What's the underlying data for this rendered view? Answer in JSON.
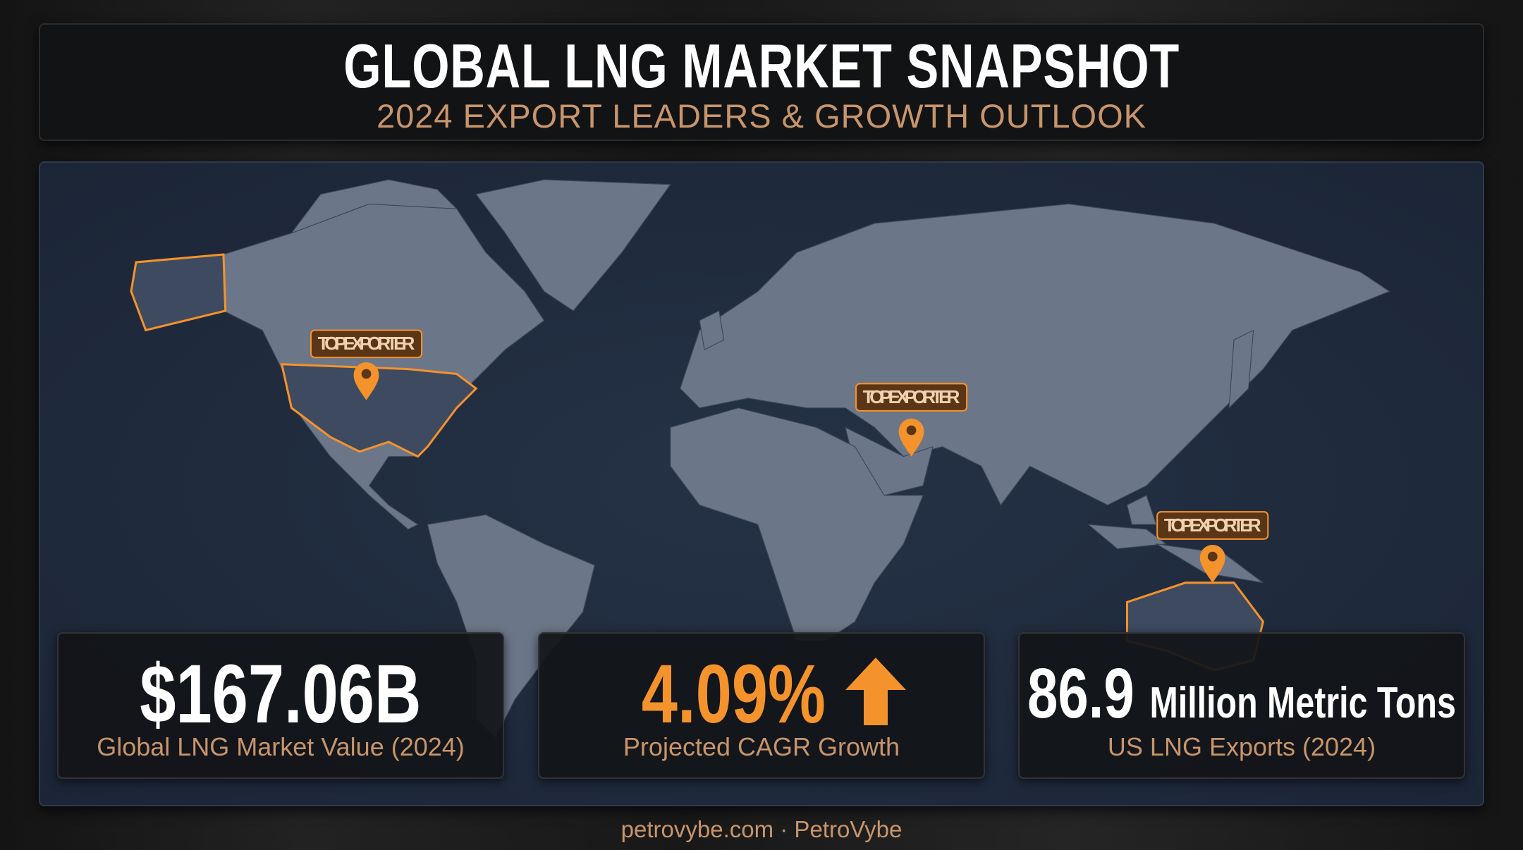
{
  "header": {
    "title": "GLOBAL LNG MARKET SNAPSHOT",
    "subtitle": "2024 EXPORT LEADERS & GROWTH OUTLOOK"
  },
  "map": {
    "markers": [
      {
        "label": "TOP EXPORTER"
      },
      {
        "label": "TOP EXPORTER"
      },
      {
        "label": "TOP EXPORTER"
      }
    ]
  },
  "stats": [
    {
      "value": "$167.06B",
      "label": "Global LNG Market Value (2024)"
    },
    {
      "value": "4.09%",
      "label": "Projected CAGR Growth"
    },
    {
      "value": "86.9",
      "unit": "Million Metric Tons",
      "label": "US LNG Exports (2024)"
    }
  ],
  "footer": "petrovybe.com · PetroVybe"
}
